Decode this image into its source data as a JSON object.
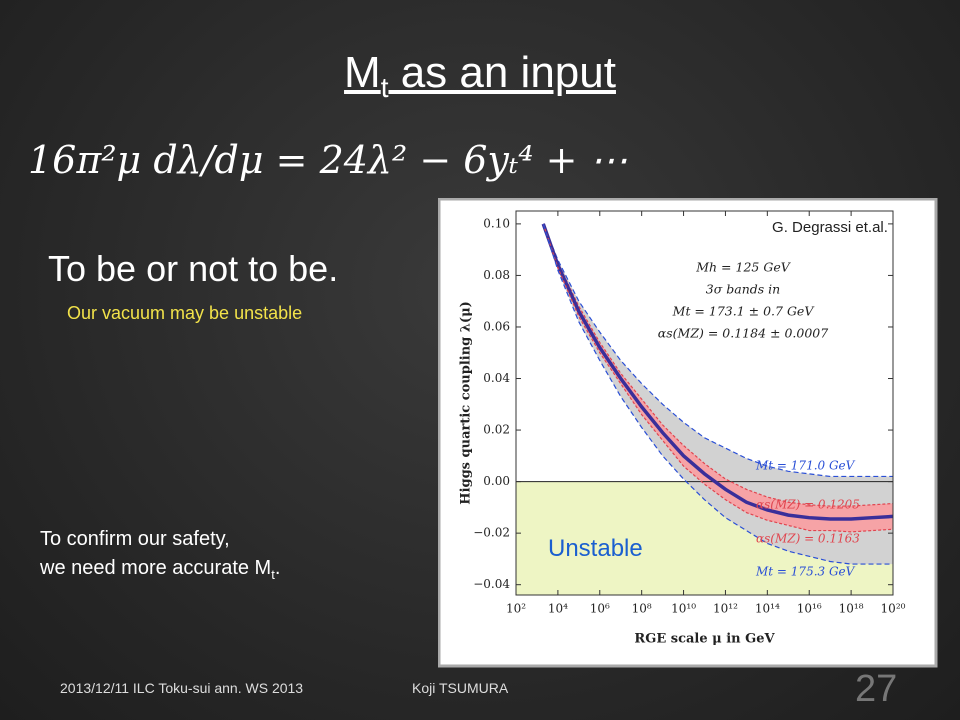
{
  "slide": {
    "title": {
      "main": "M",
      "sub": "t",
      "rest": " as an input"
    },
    "equation": "16π²μ dλ/dμ = 24λ² − 6yₜ⁴ + ⋯",
    "heading": "To be or not to be.",
    "subheading": "Our vacuum may be unstable",
    "body": {
      "line1": "To confirm our safety,",
      "line2": {
        "main": "we need more accurate M",
        "sub": "t",
        "rest": "."
      }
    },
    "footer": {
      "date": "2013/12/11 ILC Toku-sui ann. WS 2013",
      "author": "Koji TSUMURA",
      "page": "27"
    },
    "credit": "G. Degrassi et.al."
  },
  "chart_data": {
    "type": "line",
    "x_label": "RGE scale μ in GeV",
    "y_label": "Higgs quartic coupling λ(μ)",
    "log_x": true,
    "xlim": [
      100,
      1e+20
    ],
    "ylim": [
      -0.044,
      0.105
    ],
    "xticks": [
      {
        "value": 100,
        "label": "10²"
      },
      {
        "value": 10000,
        "label": "10⁴"
      },
      {
        "value": 1000000,
        "label": "10⁶"
      },
      {
        "value": 100000000,
        "label": "10⁸"
      },
      {
        "value": 10000000000.0,
        "label": "10¹⁰"
      },
      {
        "value": 1000000000000.0,
        "label": "10¹²"
      },
      {
        "value": 100000000000000.0,
        "label": "10¹⁴"
      },
      {
        "value": 1e+16,
        "label": "10¹⁶"
      },
      {
        "value": 1e+18,
        "label": "10¹⁸"
      },
      {
        "value": 1e+20,
        "label": "10²⁰"
      }
    ],
    "yticks": [
      {
        "value": 0.1,
        "label": "0.10"
      },
      {
        "value": 0.08,
        "label": "0.08"
      },
      {
        "value": 0.06,
        "label": "0.06"
      },
      {
        "value": 0.04,
        "label": "0.04"
      },
      {
        "value": 0.02,
        "label": "0.02"
      },
      {
        "value": 0,
        "label": "0.00"
      },
      {
        "value": -0.02,
        "label": "−0.02"
      },
      {
        "value": -0.04,
        "label": "−0.04"
      }
    ],
    "x": [
      2000,
      10000,
      100000,
      1000000,
      10000000,
      100000000,
      1000000000,
      10000000000.0,
      100000000000.0,
      1000000000000.0,
      10000000000000.0,
      100000000000000.0,
      1000000000000000.0,
      1e+16,
      1e+17,
      1e+18,
      1e+19,
      1e+20
    ],
    "series": [
      {
        "name": "Mt = 171.0 GeV",
        "color": "#2a4fd6",
        "values": [
          0.1,
          0.086,
          0.07,
          0.058,
          0.047,
          0.038,
          0.03,
          0.023,
          0.017,
          0.013,
          0.009,
          0.006,
          0.004,
          0.003,
          0.002,
          0.002,
          0.002,
          0.002
        ]
      },
      {
        "name": "αs(MZ) = 0.1205",
        "color": "#e0454f",
        "values": [
          0.1,
          0.085,
          0.068,
          0.054,
          0.042,
          0.032,
          0.022,
          0.014,
          0.007,
          0.001,
          -0.003,
          -0.006,
          -0.008,
          -0.009,
          -0.0095,
          -0.0095,
          -0.009,
          -0.0085
        ]
      },
      {
        "color": "#3a2f9a",
        "values": [
          0.1,
          0.084,
          0.066,
          0.052,
          0.04,
          0.029,
          0.019,
          0.01,
          0.003,
          -0.003,
          -0.008,
          -0.011,
          -0.013,
          -0.014,
          -0.0145,
          -0.0145,
          -0.014,
          -0.0135
        ]
      },
      {
        "name": "αs(MZ) = 0.1163",
        "color": "#e0454f",
        "values": [
          0.1,
          0.083,
          0.064,
          0.05,
          0.038,
          0.026,
          0.016,
          0.006,
          -0.001,
          -0.007,
          -0.012,
          -0.015,
          -0.017,
          -0.019,
          -0.019,
          -0.0195,
          -0.019,
          -0.0185
        ]
      },
      {
        "name": "Mt = 175.3 GeV",
        "color": "#2a4fd6",
        "values": [
          0.1,
          0.082,
          0.062,
          0.047,
          0.033,
          0.021,
          0.01,
          0.001,
          -0.007,
          -0.014,
          -0.019,
          -0.024,
          -0.027,
          -0.029,
          -0.031,
          -0.032,
          -0.032,
          -0.032
        ]
      }
    ],
    "annotations": [
      "Mh = 125 GeV",
      "3σ bands in",
      "Mt = 173.1 ± 0.7 GeV",
      "αs(MZ) = 0.1184 ± 0.0007"
    ],
    "region_label": "Unstable"
  }
}
